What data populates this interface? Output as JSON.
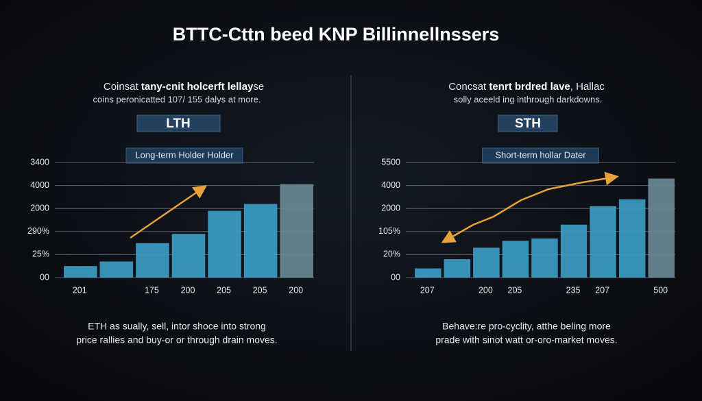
{
  "title": "BTTC-Cttn beed KNP Billinnellnssers",
  "panels": [
    {
      "heading": [
        "Coinsat ",
        "tany-cnit holcerft lellay",
        "se"
      ],
      "subheading": "coins peronicatted 107/ 155 dalys at more.",
      "badge": "LTH",
      "note": [
        "ETH as sually, sell, intor shoce into strong",
        "price rallies and buy-or or through drain moves."
      ]
    },
    {
      "heading": [
        "Concsat ",
        "tenrt brdred lave",
        ", Hallac"
      ],
      "subheading": "solly aceeld ing inthrough darkdowns.",
      "badge": "STH",
      "note": [
        "Behave:re pro-cyclity, atthe beling more",
        "prade with sinot watt or-oro-market moves."
      ]
    }
  ],
  "chart_data": [
    {
      "type": "bar",
      "title": "Long-term Holder Holder",
      "categories": [
        "201",
        null,
        "175",
        "200",
        "205",
        "205",
        "200"
      ],
      "values": [
        0.5,
        0.7,
        1.5,
        1.9,
        2.9,
        3.2,
        4.05
      ],
      "colors": [
        "#3c9cc3",
        "#3c9cc3",
        "#3c9cc3",
        "#3c9cc3",
        "#3c9cc3",
        "#3c9cc3",
        "#6a8895"
      ],
      "ylim": [
        0,
        5
      ],
      "yticks": [
        {
          "value": 0,
          "label": "00"
        },
        {
          "value": 1,
          "label": "25%"
        },
        {
          "value": 2,
          "label": "290%"
        },
        {
          "value": 3,
          "label": "2000"
        },
        {
          "value": 4,
          "label": "4000"
        },
        {
          "value": 5,
          "label": "3400"
        }
      ],
      "grid": true
    },
    {
      "type": "bar",
      "title": "Short-term hollar Dater",
      "categories": [
        "207",
        null,
        "200",
        "205",
        null,
        "235",
        "207",
        null,
        "500"
      ],
      "values": [
        0.4,
        0.8,
        1.3,
        1.6,
        1.7,
        2.3,
        3.1,
        3.4,
        4.3
      ],
      "colors": [
        "#3c9cc3",
        "#3c9cc3",
        "#3c9cc3",
        "#3c9cc3",
        "#3c9cc3",
        "#3c9cc3",
        "#3c9cc3",
        "#3c9cc3",
        "#6a8895"
      ],
      "ylim": [
        0,
        5
      ],
      "yticks": [
        {
          "value": 0,
          "label": "00"
        },
        {
          "value": 1,
          "label": "20%"
        },
        {
          "value": 2,
          "label": "105%"
        },
        {
          "value": 3,
          "label": "2000"
        },
        {
          "value": 4,
          "label": "4000"
        },
        {
          "value": 5,
          "label": "5500"
        }
      ],
      "grid": true
    }
  ]
}
